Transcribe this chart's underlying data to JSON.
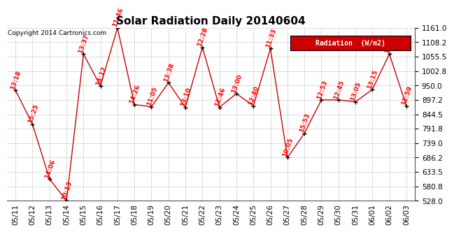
{
  "title": "Solar Radiation Daily 20140604",
  "copyright": "Copyright 2014 Cartronics.com",
  "legend_label": "Radiation  (W/m2)",
  "dates": [
    "05/11",
    "05/12",
    "05/13",
    "05/14",
    "05/15",
    "05/16",
    "05/17",
    "05/18",
    "05/19",
    "05/20",
    "05/21",
    "05/22",
    "05/23",
    "05/24",
    "05/25",
    "05/26",
    "05/27",
    "05/28",
    "05/29",
    "05/30",
    "05/31",
    "06/01",
    "06/02",
    "06/03"
  ],
  "values": [
    932,
    808,
    608,
    528,
    1065,
    948,
    1161,
    880,
    872,
    960,
    870,
    1090,
    870,
    920,
    875,
    1085,
    686,
    775,
    897,
    897,
    890,
    935,
    1065,
    875
  ],
  "labels": [
    "13:18",
    "15:25",
    "14:06",
    "10:13",
    "13:37",
    "14:12",
    "11:46",
    "14:26",
    "11:05",
    "13:38",
    "13:10",
    "12:28",
    "12:46",
    "13:00",
    "12:40",
    "11:33",
    "10:05",
    "15:53",
    "12:53",
    "12:45",
    "13:05",
    "13:15",
    "13:02",
    "12:59"
  ],
  "ymin": 528.0,
  "ymax": 1161.0,
  "yticks": [
    528.0,
    580.8,
    633.5,
    686.2,
    739.0,
    791.8,
    844.5,
    897.2,
    950.0,
    1002.8,
    1055.5,
    1108.2,
    1161.0
  ],
  "line_color": "#cc0000",
  "marker_color": "#000000",
  "bg_color": "#ffffff",
  "grid_color": "#bbbbbb",
  "legend_bg": "#cc0000",
  "legend_text_color": "#ffffff",
  "title_fontsize": 11,
  "label_fontsize": 6.5,
  "tick_fontsize": 7.5
}
